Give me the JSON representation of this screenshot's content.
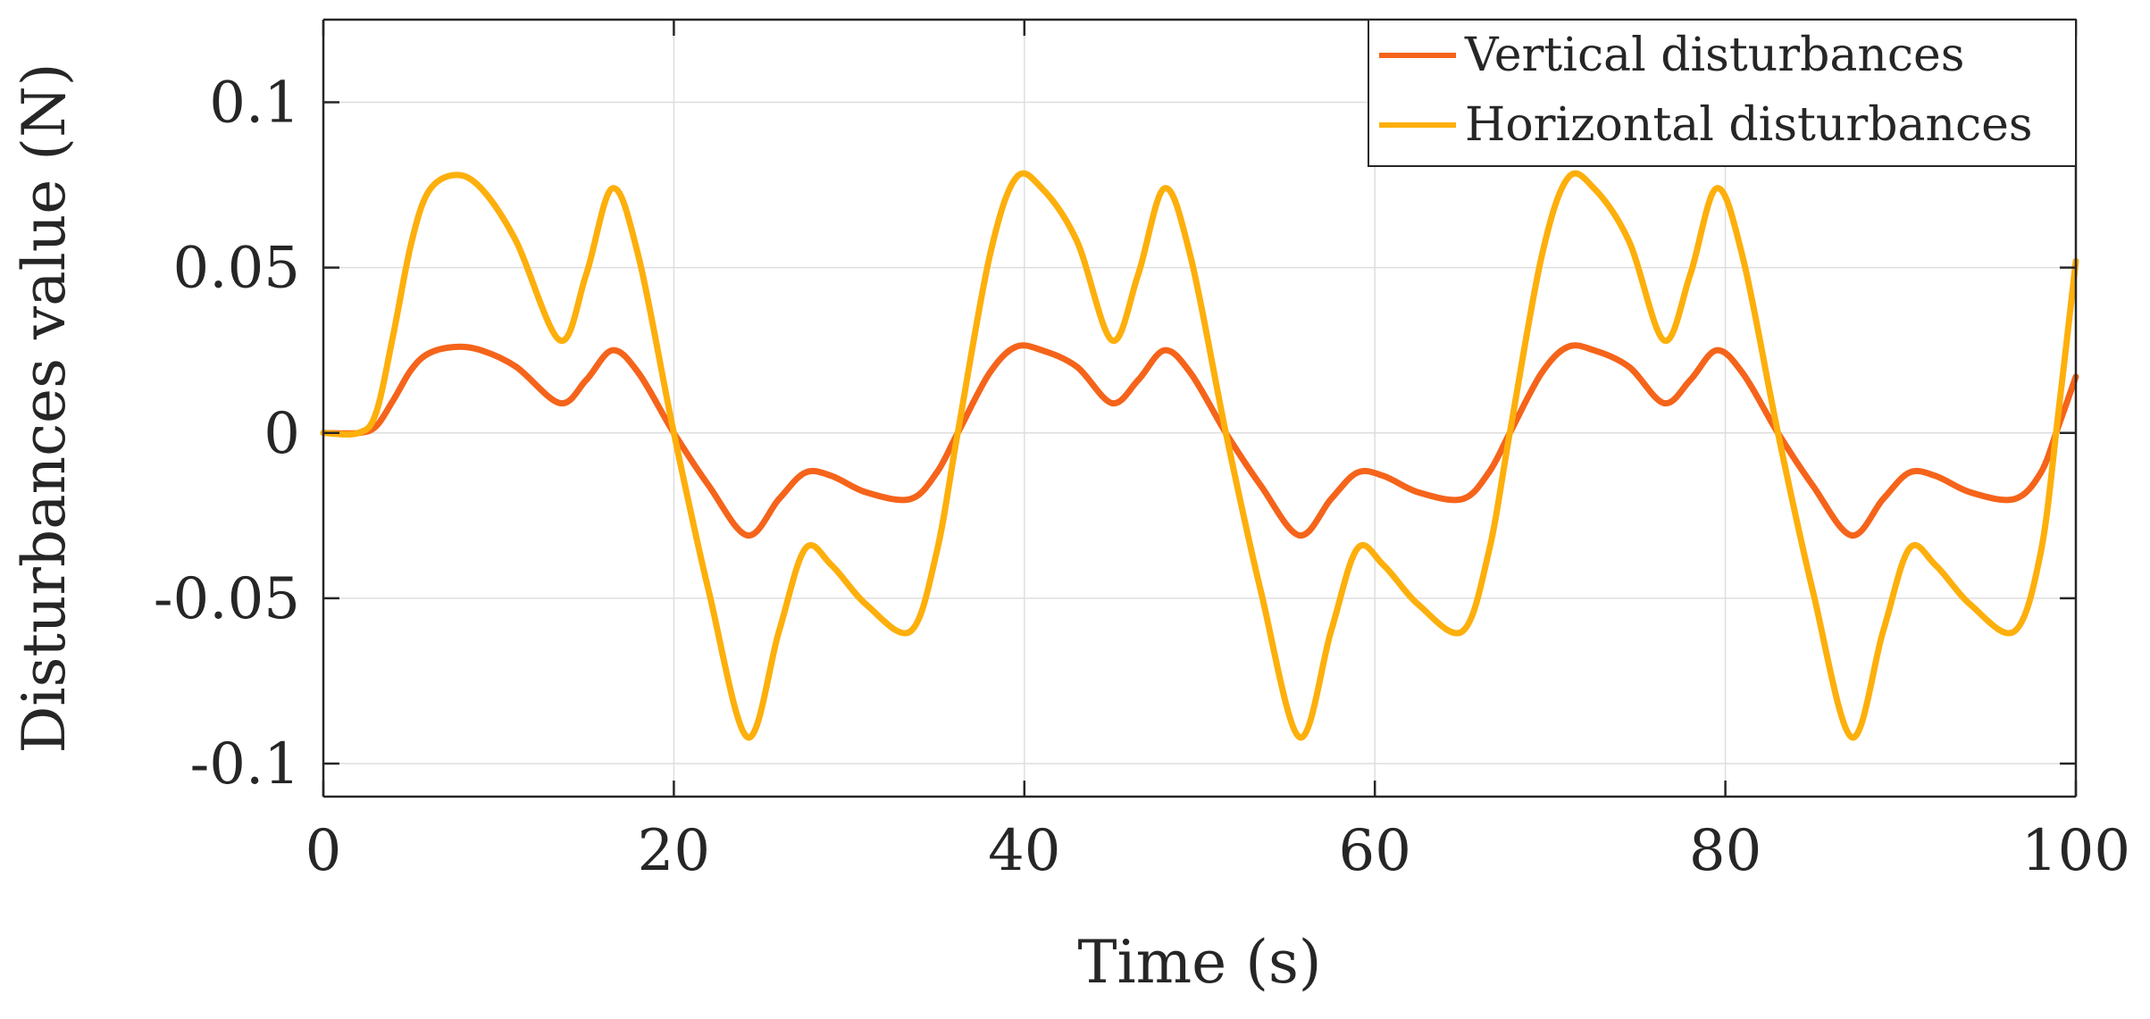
{
  "chart_data": {
    "type": "line",
    "title": "",
    "xlabel": "Time (s)",
    "ylabel": "Disturbances value (N)",
    "xlim": [
      0,
      100
    ],
    "ylim": [
      -0.11,
      0.125
    ],
    "grid": true,
    "legend_location": "top-right",
    "x_ticks": [
      0,
      20,
      40,
      60,
      80,
      100
    ],
    "x_tick_labels": [
      "0",
      "20",
      "40",
      "60",
      "80",
      "100"
    ],
    "y_ticks": [
      0.1,
      0.05,
      0,
      -0.05,
      -0.1
    ],
    "y_tick_labels": [
      "0.1",
      "0.05",
      "0",
      "-0.05",
      "-0.1"
    ],
    "series": [
      {
        "name": "Vertical disturbances",
        "color": "#F5641A",
        "x": [
          0,
          2,
          3,
          4,
          5,
          6,
          7.5,
          9,
          11,
          13.5,
          15,
          16.5,
          18,
          20,
          22,
          24.2,
          26,
          27.5,
          29,
          31,
          33.5,
          35,
          36.2,
          38,
          39.5,
          41,
          43,
          45,
          46.5,
          48,
          49.5,
          51.5,
          53.5,
          55.7,
          57.5,
          59,
          60.5,
          62.5,
          65,
          66.5,
          67.7,
          69.5,
          71,
          72.5,
          74.5,
          76.5,
          78,
          79.5,
          81,
          83,
          85,
          87.2,
          89,
          90.5,
          92,
          94,
          96.5,
          98,
          99,
          100
        ],
        "values": [
          0,
          0,
          0.002,
          0.01,
          0.019,
          0.024,
          0.026,
          0.025,
          0.02,
          0.009,
          0.016,
          0.025,
          0.018,
          0,
          -0.016,
          -0.031,
          -0.02,
          -0.012,
          -0.013,
          -0.018,
          -0.02,
          -0.012,
          0,
          0.018,
          0.026,
          0.025,
          0.02,
          0.009,
          0.016,
          0.025,
          0.018,
          0,
          -0.016,
          -0.031,
          -0.02,
          -0.012,
          -0.013,
          -0.018,
          -0.02,
          -0.012,
          0,
          0.018,
          0.026,
          0.025,
          0.02,
          0.009,
          0.016,
          0.025,
          0.018,
          0,
          -0.016,
          -0.031,
          -0.02,
          -0.012,
          -0.013,
          -0.018,
          -0.02,
          -0.012,
          0.002,
          0.017
        ]
      },
      {
        "name": "Horizontal disturbances",
        "color": "#FDAF0B",
        "x": [
          0,
          2,
          3,
          4,
          5,
          6,
          7.5,
          9,
          11,
          13.5,
          15,
          16.5,
          18,
          20,
          22,
          24.2,
          26,
          27.5,
          29,
          31,
          33.5,
          35,
          36.2,
          38,
          39.5,
          41,
          43,
          45,
          46.5,
          48,
          49.5,
          51.5,
          53.5,
          55.7,
          57.5,
          59,
          60.5,
          62.5,
          65,
          66.5,
          67.7,
          69.5,
          71,
          72.5,
          74.5,
          76.5,
          78,
          79.5,
          81,
          83,
          85,
          87.2,
          89,
          90.5,
          92,
          94,
          96.5,
          98,
          99,
          100
        ],
        "values": [
          0,
          0,
          0.006,
          0.03,
          0.057,
          0.073,
          0.078,
          0.074,
          0.058,
          0.028,
          0.048,
          0.074,
          0.053,
          0,
          -0.048,
          -0.092,
          -0.06,
          -0.035,
          -0.04,
          -0.052,
          -0.06,
          -0.036,
          0,
          0.053,
          0.077,
          0.074,
          0.058,
          0.028,
          0.048,
          0.074,
          0.053,
          0,
          -0.048,
          -0.092,
          -0.06,
          -0.035,
          -0.04,
          -0.052,
          -0.06,
          -0.036,
          0,
          0.053,
          0.077,
          0.074,
          0.058,
          0.028,
          0.048,
          0.074,
          0.053,
          0,
          -0.048,
          -0.092,
          -0.06,
          -0.035,
          -0.04,
          -0.052,
          -0.06,
          -0.036,
          0.006,
          0.052
        ]
      }
    ]
  }
}
